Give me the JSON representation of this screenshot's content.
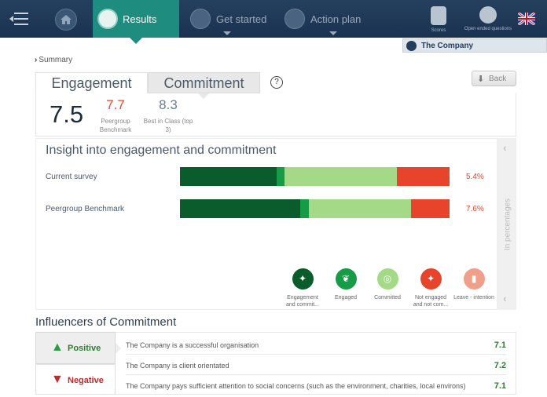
{
  "nav": {
    "results_label": "Results",
    "get_started_label": "Get started",
    "action_plan_label": "Action plan",
    "scores_label": "Scores",
    "open_ended_label": "Open ended questions"
  },
  "company": {
    "name": "The Company"
  },
  "breadcrumb": {
    "label": "Summary"
  },
  "tabs": {
    "engagement": "Engagement",
    "commitment": "Commitment"
  },
  "help_label": "?",
  "back_label": "Back",
  "scores": {
    "main": "7.5",
    "peergroup_value": "7.7",
    "peergroup_label": "Peergroup Benchmark",
    "best_in_class_value": "8.3",
    "best_in_class_label": "Best in Class (top 3)"
  },
  "insight": {
    "title": "Insight into engagement and commitment",
    "side_label": "In percentages",
    "rows": [
      {
        "label": "Current survey",
        "pct_label": "5.4%",
        "segments": [
          36,
          2.8,
          41.7,
          19.5
        ]
      },
      {
        "label": "Peergroup Benchmark",
        "pct_label": "7.6%",
        "segments": [
          44.6,
          3.2,
          37.9,
          14.3
        ]
      }
    ],
    "legend": [
      {
        "label": "Engagement and commit...",
        "color": "#0a5d2a"
      },
      {
        "label": "Engaged",
        "color": "#169c46"
      },
      {
        "label": "Committed",
        "color": "#a3d987"
      },
      {
        "label": "Not engaged and not com...",
        "color": "#e8432b"
      },
      {
        "label": "Leave - intention",
        "color": "#f0a08a"
      }
    ],
    "segment_colors": [
      "#0a5d2a",
      "#169c46",
      "#a3d987",
      "#e8432b"
    ]
  },
  "influencers": {
    "title": "Influencers of Commitment",
    "positive_label": "Positive",
    "negative_label": "Negative",
    "items": [
      {
        "text": "The Company is a successful organisation",
        "value": "7.1"
      },
      {
        "text": "The Company is client orientated",
        "value": "7.2"
      },
      {
        "text": "The Company pays sufficient attention to social concerns (such as the environment, charities, local environs)",
        "value": "7.1"
      }
    ]
  }
}
